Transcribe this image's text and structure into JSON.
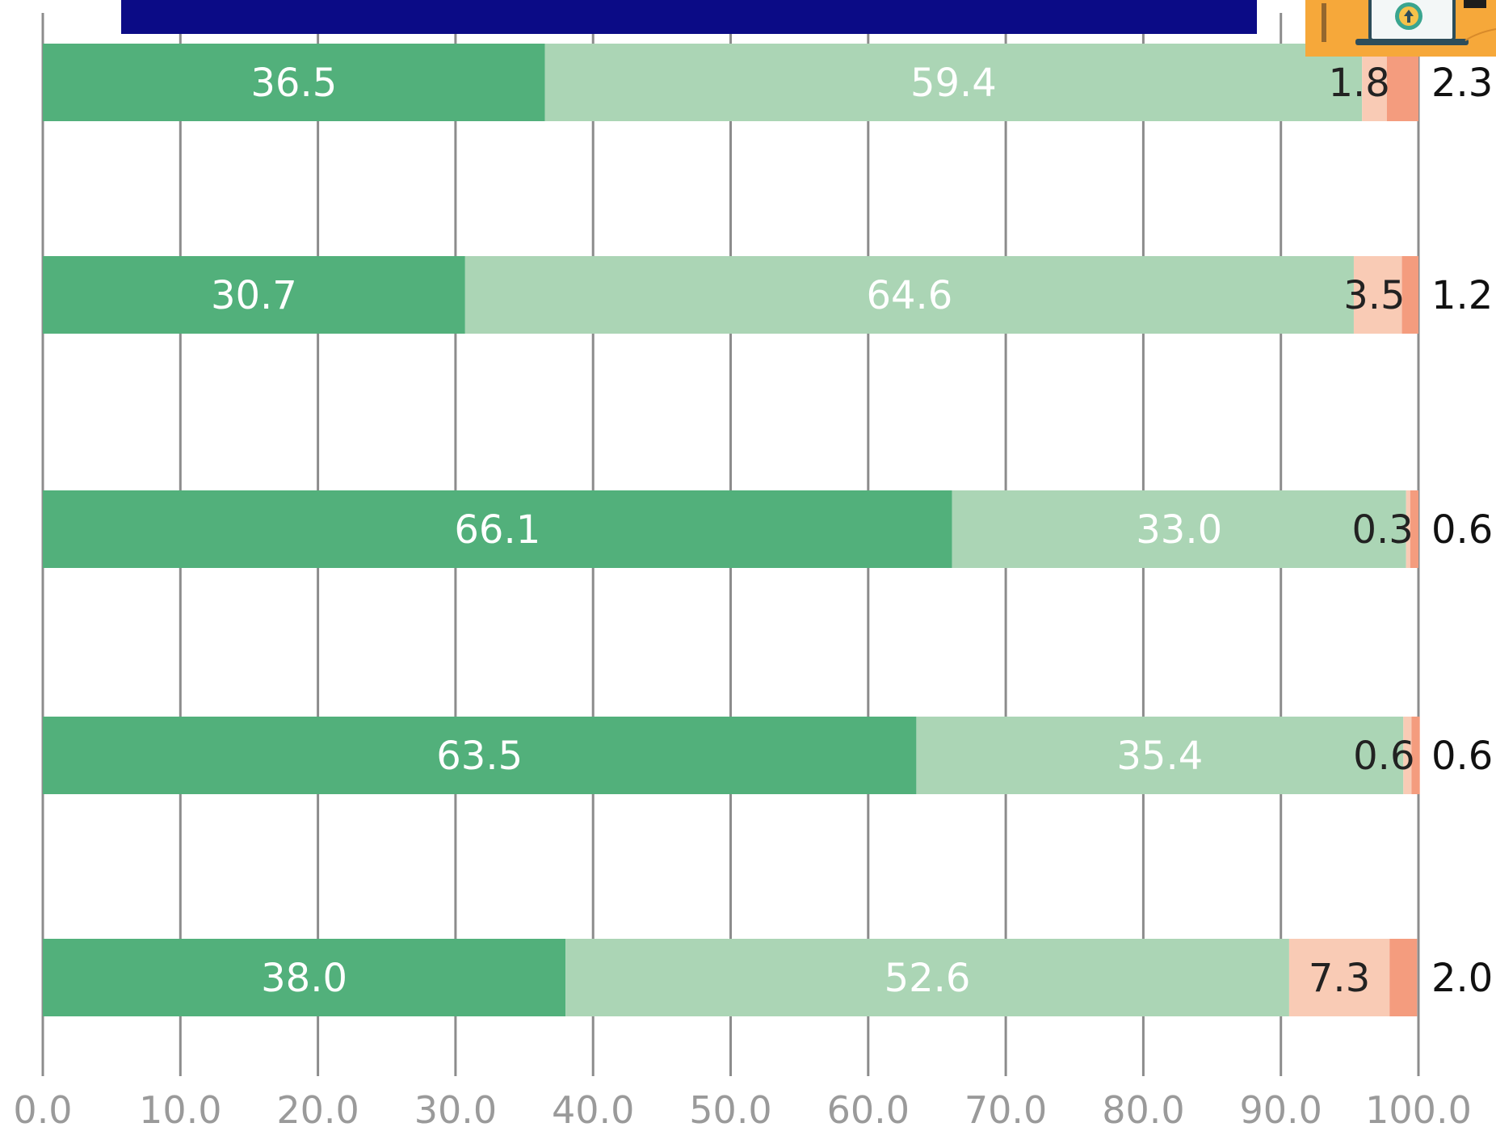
{
  "title_banner": {
    "text": "",
    "color": "#ffff00",
    "background": "#0b0b86"
  },
  "logo": {
    "icon": "upload-laptop-icon",
    "background": "#f6a83a"
  },
  "chart_data": {
    "type": "bar",
    "orientation": "horizontal",
    "stacked": true,
    "title": "",
    "xlabel": "",
    "ylabel": "",
    "xlim": [
      0,
      100
    ],
    "x_ticks": [
      "0.0",
      "10.0",
      "20.0",
      "30.0",
      "40.0",
      "50.0",
      "60.0",
      "70.0",
      "80.0",
      "90.0",
      "100.0"
    ],
    "grid": true,
    "categories": [
      "",
      "",
      "",
      "",
      ""
    ],
    "series": [
      {
        "color": "#52b07b",
        "label_color": "#ffffff",
        "values": [
          36.5,
          30.7,
          66.1,
          63.5,
          38.0
        ]
      },
      {
        "color": "#abd5b5",
        "label_color": "#ffffff",
        "values": [
          59.4,
          64.6,
          33.0,
          35.4,
          52.6
        ]
      },
      {
        "color": "#f9cbb5",
        "label_color": "#222222",
        "values": [
          1.8,
          3.5,
          0.3,
          0.6,
          7.3
        ]
      },
      {
        "color": "#f49c7e",
        "label_color": "#222222",
        "values": [
          2.3,
          1.2,
          0.6,
          0.6,
          2.0
        ]
      }
    ],
    "data_labels": [
      [
        "36.5",
        "59.4",
        "1.8",
        "2.3"
      ],
      [
        "30.7",
        "64.6",
        "3.5",
        "1.2"
      ],
      [
        "66.1",
        "33.0",
        "0.3",
        "0.6"
      ],
      [
        "63.5",
        "35.4",
        "0.6",
        "0.6"
      ],
      [
        "38.0",
        "52.6",
        "7.3",
        "2.0"
      ]
    ]
  }
}
